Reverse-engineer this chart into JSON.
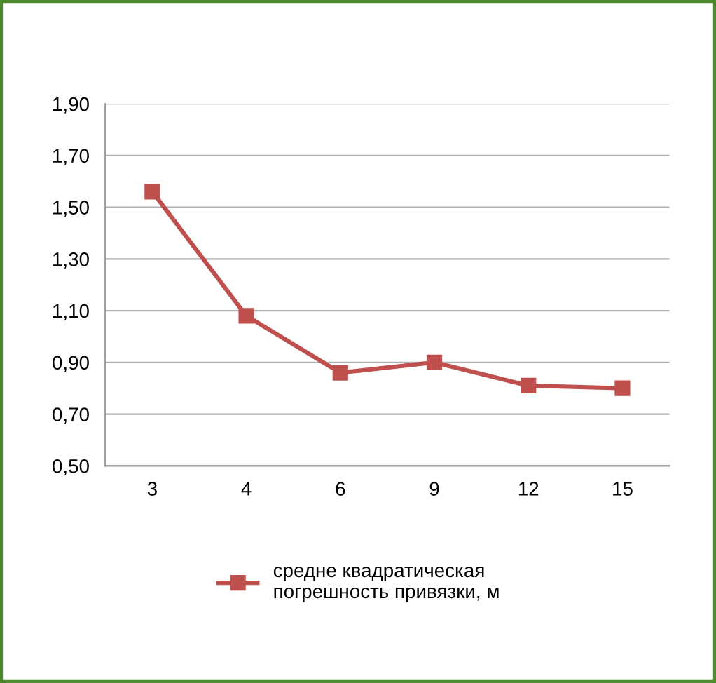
{
  "chart_data": {
    "type": "line",
    "categories": [
      "3",
      "4",
      "6",
      "9",
      "12",
      "15"
    ],
    "series": [
      {
        "name": "средне квадратическая\nпогрешность привязки, м",
        "color": "#c0504d",
        "values": [
          1.56,
          1.08,
          0.86,
          0.9,
          0.81,
          0.8
        ]
      }
    ],
    "ylim": [
      0.5,
      1.9
    ],
    "yticks": [
      {
        "value": 0.5,
        "label": "0,50"
      },
      {
        "value": 0.7,
        "label": "0,70"
      },
      {
        "value": 0.9,
        "label": "0,90"
      },
      {
        "value": 1.1,
        "label": "1,10"
      },
      {
        "value": 1.3,
        "label": "1,30"
      },
      {
        "value": 1.5,
        "label": "1,50"
      },
      {
        "value": 1.7,
        "label": "1,70"
      },
      {
        "value": 1.9,
        "label": "1,90"
      }
    ],
    "grid": "y",
    "legend": "bottom",
    "marker": "square",
    "line_style": "solid"
  }
}
